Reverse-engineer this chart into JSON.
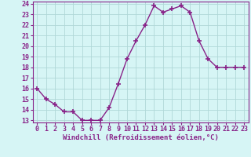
{
  "x": [
    0,
    1,
    2,
    3,
    4,
    5,
    6,
    7,
    8,
    9,
    10,
    11,
    12,
    13,
    14,
    15,
    16,
    17,
    18,
    19,
    20,
    21,
    22,
    23
  ],
  "y": [
    16,
    15,
    14.5,
    13.8,
    13.8,
    13,
    13,
    13,
    14.2,
    16.4,
    18.8,
    20.5,
    22,
    23.8,
    23.2,
    23.5,
    23.8,
    23.2,
    20.5,
    18.8,
    18,
    18,
    18,
    18
  ],
  "line_color": "#882288",
  "marker": "+",
  "marker_size": 4,
  "marker_lw": 1.2,
  "bg_color": "#d6f5f5",
  "grid_color": "#b0d8d8",
  "xlabel": "Windchill (Refroidissement éolien,°C)",
  "ylabel": "",
  "ylim": [
    13,
    24
  ],
  "xlim": [
    0,
    23
  ],
  "yticks": [
    13,
    14,
    15,
    16,
    17,
    18,
    19,
    20,
    21,
    22,
    23,
    24
  ],
  "xticks": [
    0,
    1,
    2,
    3,
    4,
    5,
    6,
    7,
    8,
    9,
    10,
    11,
    12,
    13,
    14,
    15,
    16,
    17,
    18,
    19,
    20,
    21,
    22,
    23
  ],
  "xlabel_fontsize": 6.5,
  "tick_fontsize": 6,
  "line_width": 1.0,
  "spine_color": "#882288"
}
